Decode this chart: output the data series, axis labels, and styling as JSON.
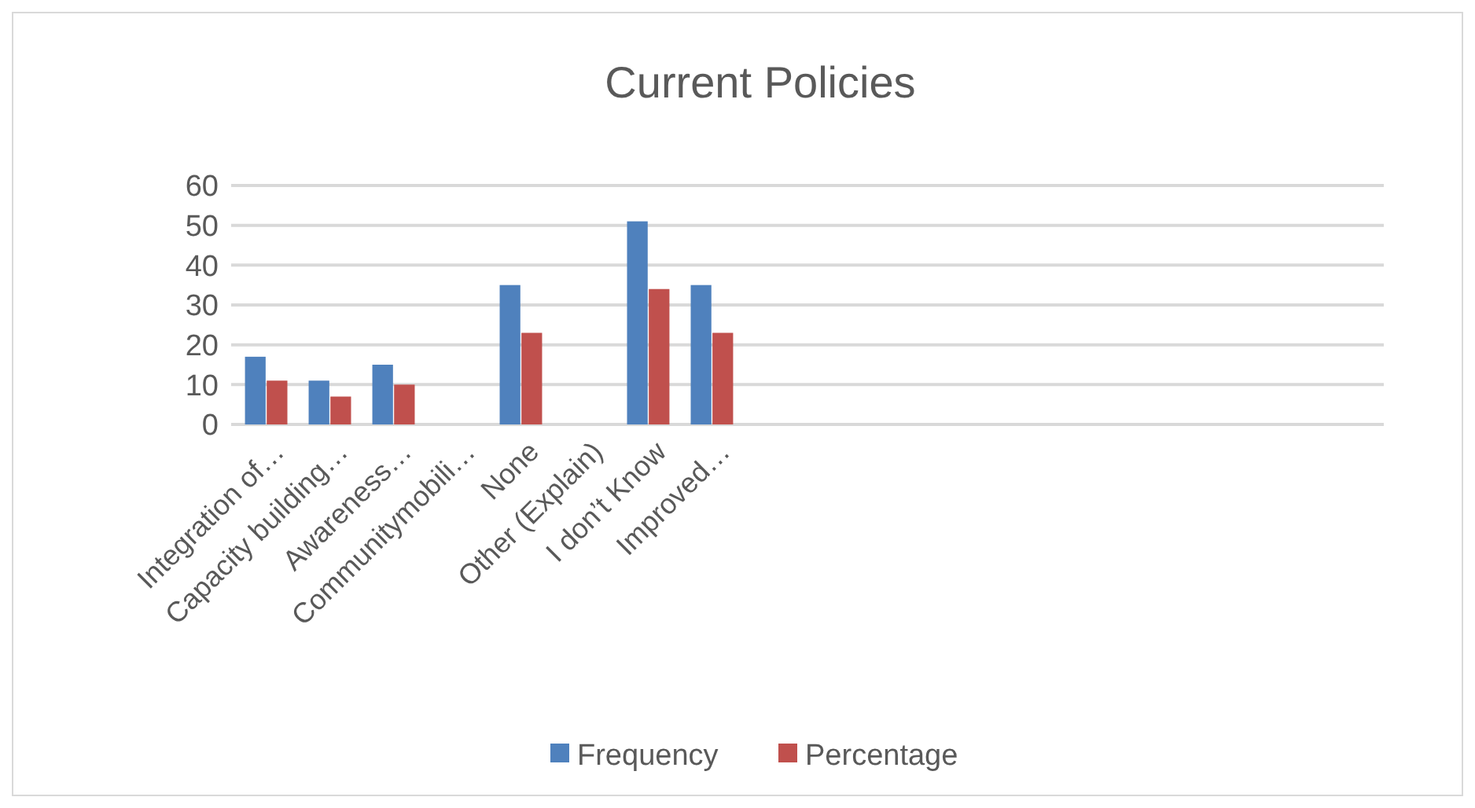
{
  "chart_data": {
    "type": "bar",
    "title": "Current Policies",
    "categories": [
      "Integration of…",
      "Capacity building…",
      "Awareness…",
      "Communitymobili…",
      "None",
      "Other (Explain)",
      "I don’t Know",
      "Improved…"
    ],
    "series": [
      {
        "name": "Frequency",
        "color": "#4f81bd",
        "values": [
          17,
          11,
          15,
          0,
          35,
          0,
          51,
          35
        ]
      },
      {
        "name": "Percentage",
        "color": "#c0504d",
        "values": [
          11,
          7,
          10,
          0,
          23,
          0,
          34,
          23
        ]
      }
    ],
    "ylim": [
      0,
      60
    ],
    "yticks": [
      0,
      10,
      20,
      30,
      40,
      50,
      60
    ],
    "grid": "y",
    "legend": "bottom"
  }
}
